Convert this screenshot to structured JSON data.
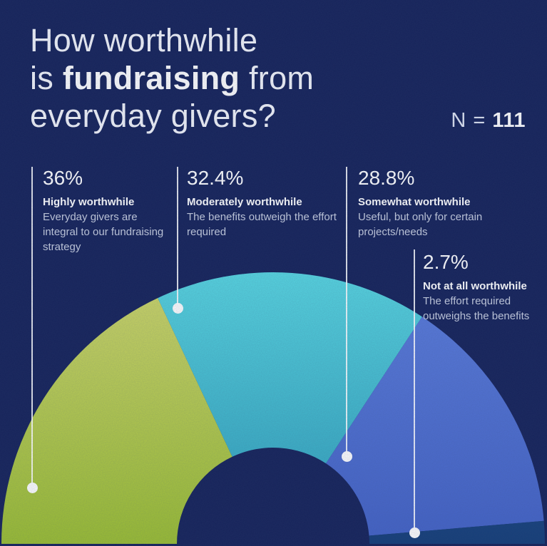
{
  "title": {
    "line1": "How worthwhile",
    "line2_pre": "is ",
    "line2_bold": "fundraising",
    "line2_post": " from",
    "line3": "everyday givers?"
  },
  "sample": {
    "prefix": "N = ",
    "value": "111"
  },
  "colors": {
    "background": "#16235A",
    "text_primary": "#FFFFFF",
    "text_secondary": "#C7CEE0",
    "leader_line": "#FFFFFF"
  },
  "chart_data": {
    "type": "pie",
    "subtype": "half-donut-fan",
    "title": "How worthwhile is fundraising from everyday givers?",
    "sample_size": 111,
    "start_angle_deg": 180,
    "total_angle_deg": 180,
    "legend_position": "top-callouts",
    "segments": [
      {
        "label": "Highly worthwhile",
        "pct_label": "36%",
        "value_pct": 36,
        "description": "Everyday givers are integral to our fundraising strategy",
        "color_outer": "#CFD76C",
        "color_inner": "#9BBE32"
      },
      {
        "label": "Moderately worthwhile",
        "pct_label": "32.4%",
        "value_pct": 32.4,
        "description": "The benefits outweigh the effort required",
        "color_outer": "#57D6E1",
        "color_inner": "#2E9CB9"
      },
      {
        "label": "Somewhat worthwhile",
        "pct_label": "28.8%",
        "value_pct": 28.8,
        "description": "Useful, but only for certain projects/needs",
        "color_outer": "#5C7EDD",
        "color_inner": "#4362C5"
      },
      {
        "label": "Not at all worthwhile",
        "pct_label": "2.7%",
        "value_pct": 2.7,
        "description": "The effort required outweighs the benefits",
        "color_outer": "#2A5C9C",
        "color_inner": "#153E78"
      }
    ]
  }
}
